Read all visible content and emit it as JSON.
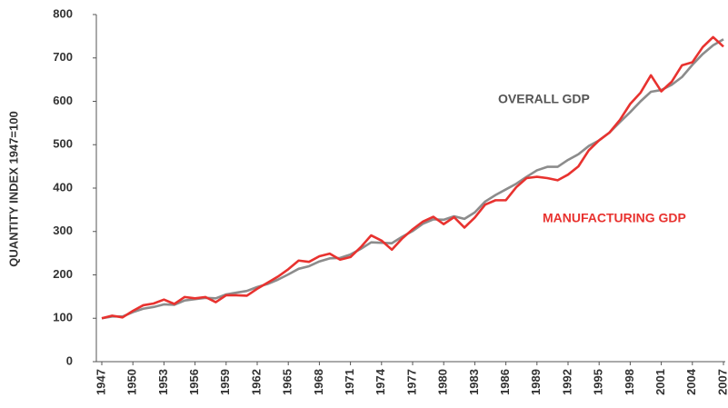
{
  "chart_data": {
    "type": "line",
    "y_label": "QUANTITY INDEX 1947=100",
    "x": [
      1947,
      1948,
      1949,
      1950,
      1951,
      1952,
      1953,
      1954,
      1955,
      1956,
      1957,
      1958,
      1959,
      1960,
      1961,
      1962,
      1963,
      1964,
      1965,
      1966,
      1967,
      1968,
      1969,
      1970,
      1971,
      1972,
      1973,
      1974,
      1975,
      1976,
      1977,
      1978,
      1979,
      1980,
      1981,
      1982,
      1983,
      1984,
      1985,
      1986,
      1987,
      1988,
      1989,
      1990,
      1991,
      1992,
      1993,
      1994,
      1995,
      1996,
      1997,
      1998,
      1999,
      2000,
      2001,
      2002,
      2003,
      2004,
      2005,
      2006,
      2007
    ],
    "series": [
      {
        "name": "OVERALL GDP",
        "color": "#8c8c8c",
        "values": [
          100,
          104,
          104,
          114,
          122,
          126,
          132,
          131,
          141,
          144,
          147,
          146,
          155,
          159,
          163,
          172,
          179,
          189,
          201,
          214,
          220,
          231,
          238,
          239,
          247,
          260,
          275,
          274,
          273,
          288,
          301,
          318,
          328,
          327,
          335,
          329,
          344,
          369,
          384,
          397,
          410,
          426,
          441,
          449,
          449,
          465,
          478,
          497,
          510,
          528,
          552,
          575,
          600,
          622,
          626,
          638,
          656,
          684,
          709,
          729,
          743
        ]
      },
      {
        "name": "MANUFACTURING GDP",
        "color": "#e8322f",
        "values": [
          100,
          106,
          102,
          117,
          130,
          134,
          143,
          133,
          149,
          146,
          149,
          137,
          153,
          153,
          152,
          168,
          182,
          196,
          213,
          233,
          230,
          243,
          249,
          235,
          241,
          264,
          291,
          279,
          258,
          284,
          305,
          323,
          334,
          317,
          333,
          309,
          332,
          362,
          372,
          372,
          402,
          423,
          426,
          423,
          418,
          431,
          450,
          487,
          510,
          528,
          557,
          594,
          620,
          660,
          623,
          645,
          683,
          690,
          725,
          748,
          726
        ]
      }
    ],
    "xlim": [
      1947,
      2007
    ],
    "xticks": [
      1947,
      1950,
      1953,
      1956,
      1959,
      1962,
      1965,
      1968,
      1971,
      1974,
      1977,
      1980,
      1983,
      1986,
      1989,
      1992,
      1995,
      1998,
      2001,
      2004,
      2007
    ],
    "ylim": [
      0,
      800
    ],
    "yticks": [
      0,
      100,
      200,
      300,
      400,
      500,
      600,
      700,
      800
    ]
  }
}
